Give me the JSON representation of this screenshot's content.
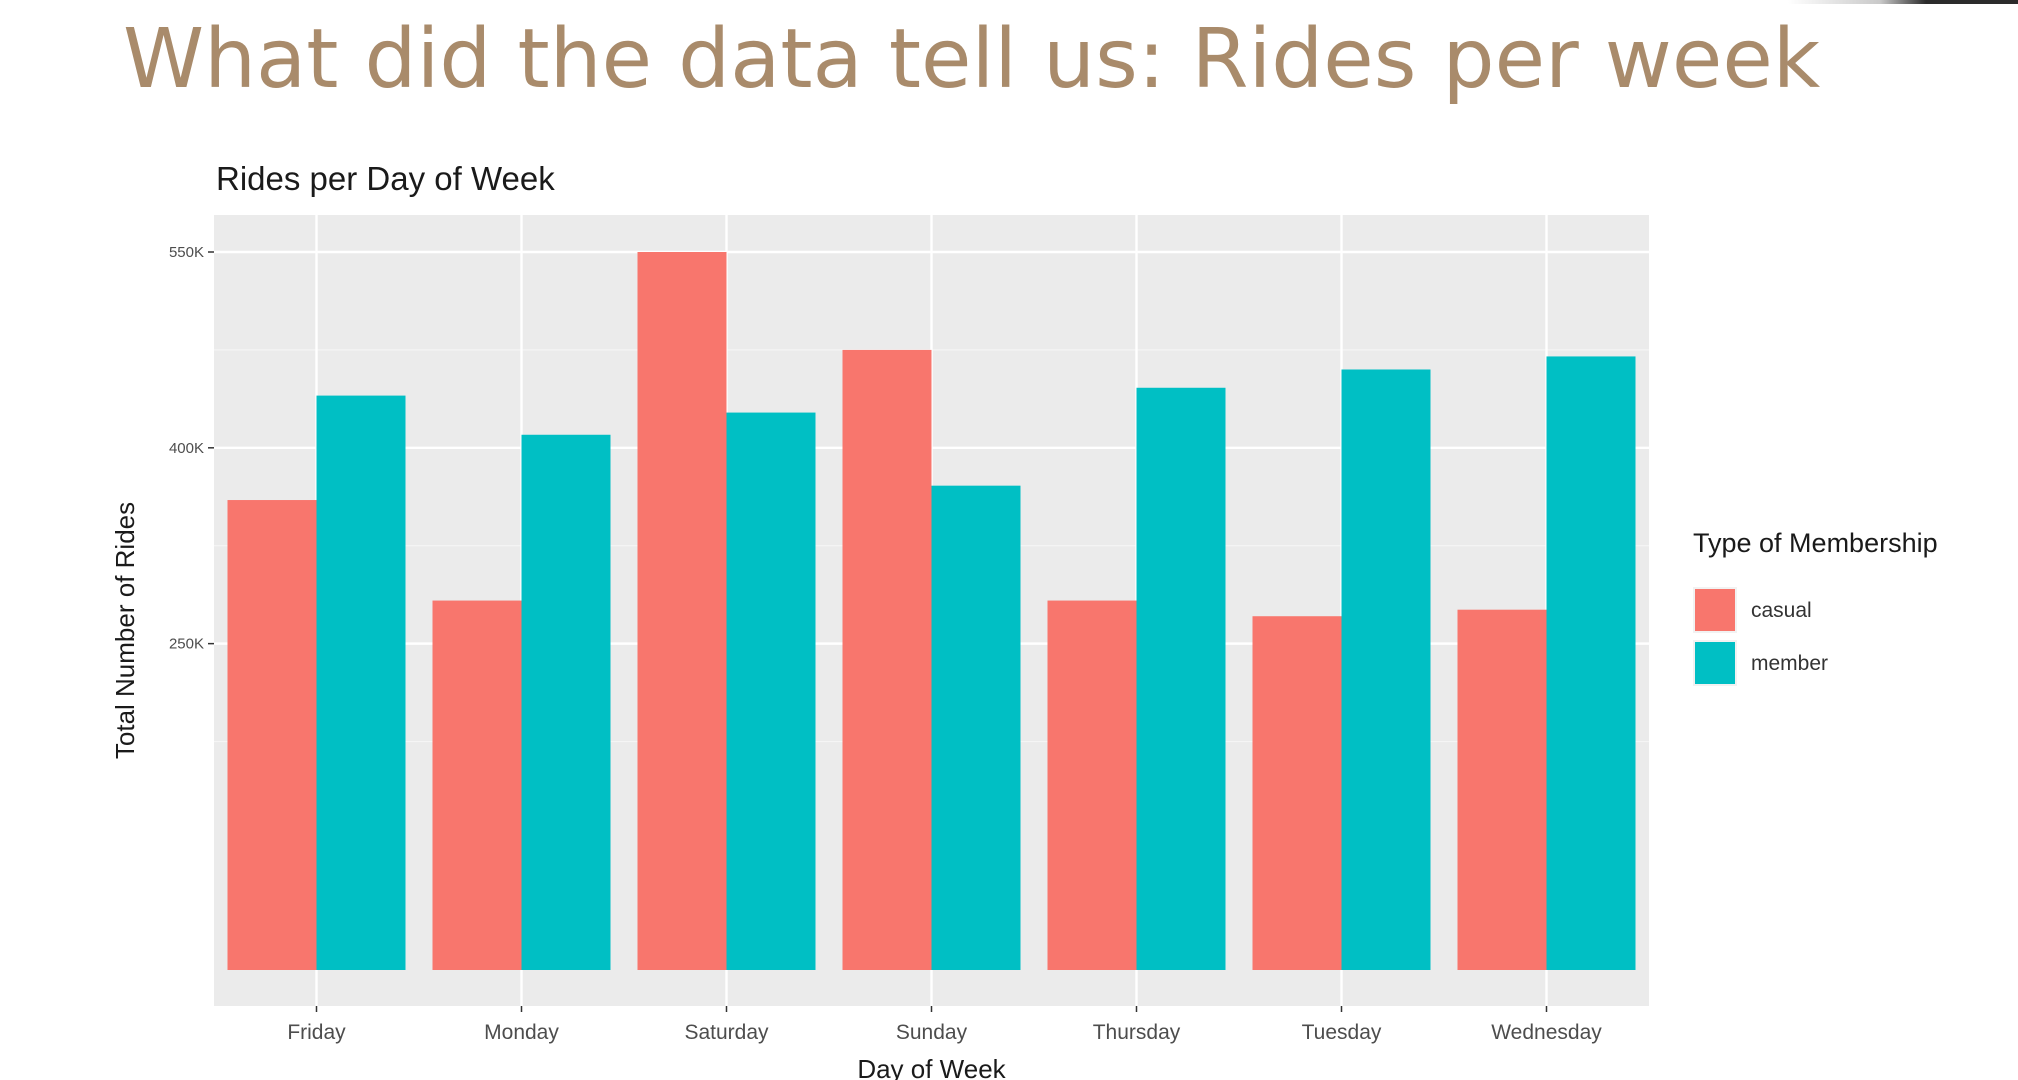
{
  "slide": {
    "title": "What did the data tell us: Rides per week"
  },
  "chart_data": {
    "type": "bar",
    "title": "Rides per Day of Week",
    "xlabel": "Day of Week",
    "ylabel": "Total Number of Rides",
    "categories": [
      "Friday",
      "Monday",
      "Saturday",
      "Sunday",
      "Thursday",
      "Tuesday",
      "Wednesday"
    ],
    "series": [
      {
        "name": "casual",
        "color": "#f8766d",
        "values": [
          360000,
          283000,
          550000,
          475000,
          283000,
          271000,
          276000
        ]
      },
      {
        "name": "member",
        "color": "#00bfc4",
        "values": [
          440000,
          410000,
          427000,
          371000,
          446000,
          460000,
          470000
        ]
      }
    ],
    "ylim": [
      0,
      570000
    ],
    "yticks": [
      250000,
      400000,
      550000
    ],
    "ytick_labels": [
      "250K",
      "400K",
      "550K"
    ],
    "grid": true,
    "legend": {
      "title": "Type of Membership",
      "position": "right"
    }
  }
}
